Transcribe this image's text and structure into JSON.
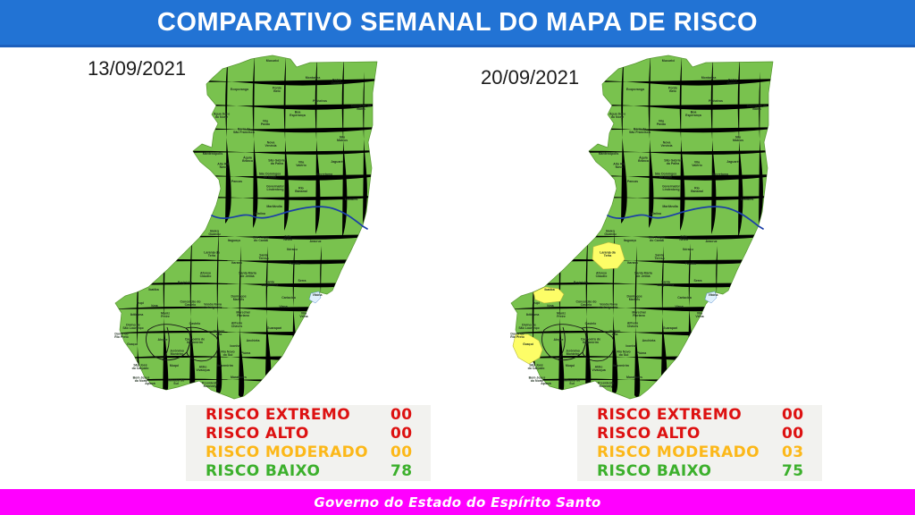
{
  "header": {
    "title": "COMPARATIVO SEMANAL DO MAPA DE RISCO"
  },
  "footer": {
    "label": "Governo do Estado do Espírito Santo"
  },
  "colors": {
    "header_bg": "#2273d4",
    "footer_bg": "#ff00ff",
    "map_green": "#79c24e",
    "map_yellow": "#fdfd67",
    "risk_red": "#dd1111",
    "risk_orange": "#fcb819",
    "risk_green": "#3cb02c",
    "legend_bg": "#f2f2ef",
    "river_blue": "#1b3fa7"
  },
  "maps": [
    {
      "date": "13/09/2021",
      "legend": [
        {
          "label": "RISCO EXTREMO",
          "value": "00",
          "level": "red"
        },
        {
          "label": "RISCO ALTO",
          "value": "00",
          "level": "red"
        },
        {
          "label": "RISCO MODERADO",
          "value": "00",
          "level": "orange"
        },
        {
          "label": "RISCO BAIXO",
          "value": "78",
          "level": "green"
        }
      ],
      "highlights": []
    },
    {
      "date": "20/09/2021",
      "legend": [
        {
          "label": "RISCO EXTREMO",
          "value": "00",
          "level": "red"
        },
        {
          "label": "RISCO ALTO",
          "value": "00",
          "level": "red"
        },
        {
          "label": "RISCO MODERADO",
          "value": "03",
          "level": "orange"
        },
        {
          "label": "RISCO BAIXO",
          "value": "75",
          "level": "green"
        }
      ],
      "highlights": [
        "Laranja da Terra",
        "Ibatiba",
        "Guaçuí"
      ]
    }
  ],
  "municipalities": [
    [
      "Mucurici",
      185,
      19
    ],
    [
      "Montanha",
      230,
      38
    ],
    [
      "Pedro Canário",
      257,
      42
    ],
    [
      "Ecoporanga",
      148,
      51
    ],
    [
      "Ponto Belo",
      190,
      51
    ],
    [
      "Pinheiros",
      238,
      64
    ],
    [
      "Conceição da Barra",
      284,
      71
    ],
    [
      "Água Doce do Norte",
      128,
      80
    ],
    [
      "Boa Esperança",
      213,
      78
    ],
    [
      "Vila Pavão",
      177,
      88
    ],
    [
      "Barra de São Francisco",
      153,
      97
    ],
    [
      "São Mateus",
      263,
      106
    ],
    [
      "Nova Venécia",
      183,
      112
    ],
    [
      "Mantenópolis",
      118,
      123
    ],
    [
      "Águia Branca",
      157,
      129
    ],
    [
      "São Gabriel da Palha",
      190,
      132
    ],
    [
      "Vila Valério",
      217,
      134
    ],
    [
      "Jaguaré",
      257,
      132
    ],
    [
      "Alto Rio Novo",
      130,
      136
    ],
    [
      "São Domingos do Norte",
      182,
      147
    ],
    [
      "Sooretama",
      243,
      146
    ],
    [
      "Pancas",
      145,
      154
    ],
    [
      "Governador Lindenberg",
      188,
      161
    ],
    [
      "Rio Bananal",
      217,
      163
    ],
    [
      "Linhares",
      273,
      174
    ],
    [
      "Marilândia",
      187,
      182
    ],
    [
      "Colatina",
      170,
      190
    ],
    [
      "Baixo Guandu",
      120,
      211
    ],
    [
      "Itaguaçu",
      142,
      220
    ],
    [
      "São Roque do Canaã",
      172,
      218
    ],
    [
      "João Neiva",
      202,
      217
    ],
    [
      "Aracruz",
      233,
      221
    ],
    [
      "Ibiraçu",
      207,
      230
    ],
    [
      "Laranja da Terra",
      117,
      235
    ],
    [
      "Santa Teresa",
      175,
      238
    ],
    [
      "Itarana",
      145,
      245
    ],
    [
      "Fundão",
      210,
      246
    ],
    [
      "Afonso Cláudio",
      110,
      258
    ],
    [
      "Santa Maria de Jetibá",
      157,
      258
    ],
    [
      "Santa Leopoldina",
      182,
      268
    ],
    [
      "Serra",
      218,
      265
    ],
    [
      "Brejetuba",
      87,
      267
    ],
    [
      "Ibatiba",
      52,
      275
    ],
    [
      "Vitória",
      235,
      281
    ],
    [
      "Cariacica",
      203,
      284
    ],
    [
      "Irupi",
      37,
      290
    ],
    [
      "Iúna",
      53,
      293
    ],
    [
      "Conceição do Castelo",
      93,
      290
    ],
    [
      "Venda Nova do Imigrante",
      118,
      293
    ],
    [
      "Domingos Martins",
      147,
      284
    ],
    [
      "Viana",
      197,
      294
    ],
    [
      "Ibitirama",
      33,
      303
    ],
    [
      "Muniz Freire",
      65,
      303
    ],
    [
      "Marechal Floriano",
      152,
      302
    ],
    [
      "Vila Velha",
      220,
      303
    ],
    [
      "Divino de São Lourenço",
      29,
      316
    ],
    [
      "Castelo",
      98,
      313
    ],
    [
      "Alfredo Chaves",
      145,
      314
    ],
    [
      "Guarapari",
      187,
      318
    ],
    [
      "Dores do Rio Preto",
      16,
      326
    ],
    [
      "Guaçuí",
      28,
      336
    ],
    [
      "Alegre",
      62,
      331
    ],
    [
      "Cachoeiro de Itapemirim",
      98,
      332
    ],
    [
      "Vargem Alta",
      125,
      323
    ],
    [
      "Anchieta",
      163,
      332
    ],
    [
      "Iconha",
      143,
      338
    ],
    [
      "Jerônimo Monteiro",
      78,
      345
    ],
    [
      "Rio Novo do Sul",
      135,
      346
    ],
    [
      "Piúma",
      155,
      346
    ],
    [
      "São José do Calçado",
      37,
      361
    ],
    [
      "Muqui",
      75,
      360
    ],
    [
      "Atílio Vivacqua",
      107,
      363
    ],
    [
      "Itapemirim",
      132,
      360
    ],
    [
      "Marataízes",
      147,
      373
    ],
    [
      "Bom Jesus do Norte",
      38,
      375
    ],
    [
      "Apiacá",
      48,
      380
    ],
    [
      "Mimoso do Sul",
      77,
      378
    ],
    [
      "Presidente Kennedy",
      115,
      381
    ]
  ]
}
